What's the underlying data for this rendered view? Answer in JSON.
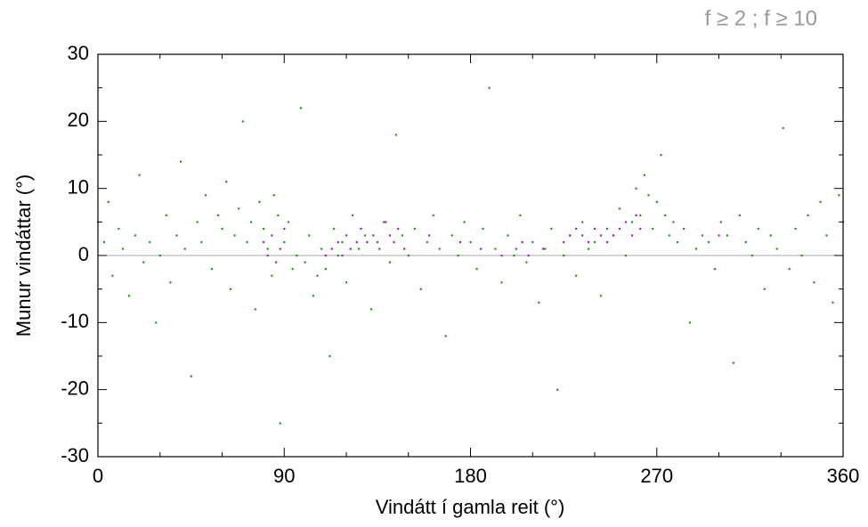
{
  "chart_data": {
    "type": "scatter",
    "annotation": "f ≥ 2 ; f ≥ 10",
    "x_label": "Vindátt í gamla reit (°)",
    "y_label": "Munur vindáttar (°)",
    "xlim": [
      0,
      360
    ],
    "xticks": [
      0,
      90,
      180,
      270,
      360
    ],
    "xminorticks": [
      30,
      60,
      120,
      150,
      210,
      240,
      300,
      330
    ],
    "ylim": [
      -30,
      30
    ],
    "yticks": [
      -30,
      -20,
      -10,
      0,
      10,
      20,
      30
    ],
    "yminorticks": [
      -25,
      -15,
      -5,
      5,
      15,
      25
    ],
    "hlines": [
      0
    ],
    "series": [
      {
        "color": "#1f9a1f",
        "x": [
          0,
          3,
          5,
          7,
          10,
          12,
          15,
          18,
          20,
          22,
          25,
          28,
          30,
          33,
          35,
          38,
          40,
          42,
          45,
          48,
          50,
          52,
          55,
          58,
          60,
          62,
          64,
          66,
          68,
          70,
          72,
          74,
          76,
          78,
          80,
          82,
          84,
          85,
          87,
          88,
          90,
          92,
          94,
          96,
          98,
          100,
          102,
          104,
          106,
          108,
          110,
          112,
          114,
          116,
          118,
          120,
          123,
          126,
          129,
          132,
          135,
          138,
          141,
          144,
          147,
          150,
          153,
          156,
          159,
          162,
          165,
          168,
          171,
          174,
          177,
          180,
          183,
          186,
          189,
          192,
          195,
          198,
          201,
          204,
          207,
          210,
          213,
          216,
          219,
          222,
          225,
          228,
          231,
          234,
          237,
          240,
          243,
          246,
          249,
          252,
          255,
          258,
          260,
          262,
          264,
          266,
          268,
          270,
          272,
          274,
          276,
          278,
          280,
          283,
          286,
          289,
          292,
          295,
          298,
          301,
          304,
          307,
          310,
          313,
          316,
          319,
          322,
          325,
          328,
          331,
          334,
          337,
          340,
          343,
          346,
          349,
          352,
          355,
          358,
          360
        ],
        "values": [
          5,
          2,
          8,
          -3,
          4,
          1,
          -6,
          3,
          12,
          -1,
          2,
          -10,
          0,
          6,
          -4,
          3,
          14,
          1,
          -18,
          5,
          2,
          9,
          -2,
          6,
          4,
          11,
          -5,
          3,
          7,
          20,
          2,
          5,
          -8,
          8,
          4,
          1,
          -3,
          9,
          6,
          -25,
          2,
          5,
          -2,
          0,
          22,
          -1,
          3,
          -6,
          -3,
          1,
          -2,
          -15,
          4,
          0,
          2,
          -4,
          6,
          1,
          3,
          -8,
          2,
          5,
          -1,
          18,
          3,
          0,
          4,
          -5,
          2,
          6,
          1,
          -12,
          3,
          0,
          5,
          2,
          -2,
          4,
          25,
          1,
          -4,
          3,
          0,
          6,
          -1,
          2,
          -7,
          1,
          4,
          -20,
          0,
          3,
          -3,
          5,
          1,
          2,
          -6,
          4,
          3,
          7,
          0,
          5,
          10,
          6,
          12,
          9,
          4,
          8,
          15,
          6,
          3,
          5,
          2,
          4,
          -10,
          1,
          3,
          2,
          -2,
          5,
          3,
          -16,
          6,
          2,
          0,
          4,
          -5,
          3,
          1,
          19,
          -2,
          4,
          0,
          6,
          -4,
          8,
          3,
          -7,
          9,
          5
        ]
      },
      {
        "color": "#a020c0",
        "x": [
          80,
          82,
          84,
          86,
          88,
          90,
          110,
          113,
          116,
          118,
          120,
          122,
          125,
          127,
          130,
          133,
          136,
          139,
          141,
          143,
          145,
          148,
          160,
          175,
          185,
          195,
          202,
          205,
          208,
          215,
          225,
          228,
          231,
          234,
          237,
          240,
          243,
          246,
          249,
          252,
          255,
          258,
          260,
          262,
          300
        ],
        "values": [
          2,
          0,
          3,
          -1,
          1,
          4,
          0,
          1,
          2,
          0,
          3,
          1,
          2,
          4,
          2,
          3,
          1,
          5,
          3,
          2,
          4,
          1,
          3,
          2,
          1,
          0,
          1,
          2,
          0,
          1,
          2,
          3,
          4,
          3,
          2,
          4,
          3,
          2,
          3,
          4,
          5,
          3,
          6,
          4,
          3
        ]
      }
    ]
  }
}
